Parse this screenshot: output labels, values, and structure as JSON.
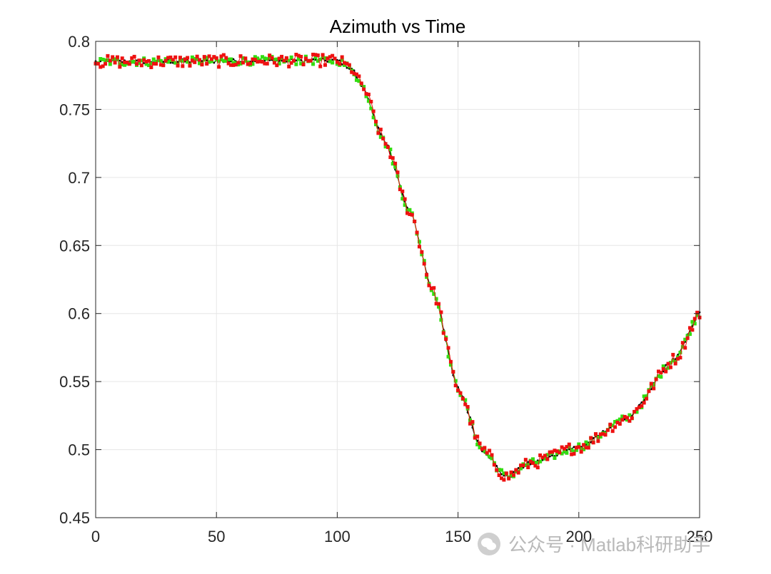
{
  "chart_data": {
    "type": "line",
    "title": "Azimuth vs Time",
    "xlabel": "",
    "ylabel": "",
    "xlim": [
      0,
      250
    ],
    "ylim": [
      0.45,
      0.8
    ],
    "xticks": [
      0,
      50,
      100,
      150,
      200,
      250
    ],
    "xtick_labels": [
      "0",
      "50",
      "100",
      "150",
      "200",
      "250"
    ],
    "yticks": [
      0.45,
      0.5,
      0.55,
      0.6,
      0.65,
      0.7,
      0.75,
      0.8
    ],
    "ytick_labels": [
      "0.45",
      "0.5",
      "0.55",
      "0.6",
      "0.65",
      "0.7",
      "0.75",
      "0.8"
    ],
    "grid": true,
    "legend": "none",
    "curve_key_points": {
      "x": [
        0,
        100,
        106,
        110,
        120,
        130,
        140,
        150,
        160,
        170,
        180,
        200,
        220,
        240,
        250
      ],
      "y": [
        0.785,
        0.786,
        0.78,
        0.768,
        0.725,
        0.675,
        0.615,
        0.545,
        0.5,
        0.48,
        0.49,
        0.502,
        0.523,
        0.567,
        0.6
      ]
    },
    "series": [
      {
        "color": "#000000",
        "marker": "point",
        "noise": 0.0015
      },
      {
        "color": "#33dd11",
        "marker": "square",
        "noise": 0.003
      },
      {
        "color": "#ee1111",
        "marker": "square",
        "noise": 0.0045
      }
    ]
  },
  "watermark": {
    "icon": "wechat-icon",
    "text": "公众号 · Matlab科研助手"
  }
}
